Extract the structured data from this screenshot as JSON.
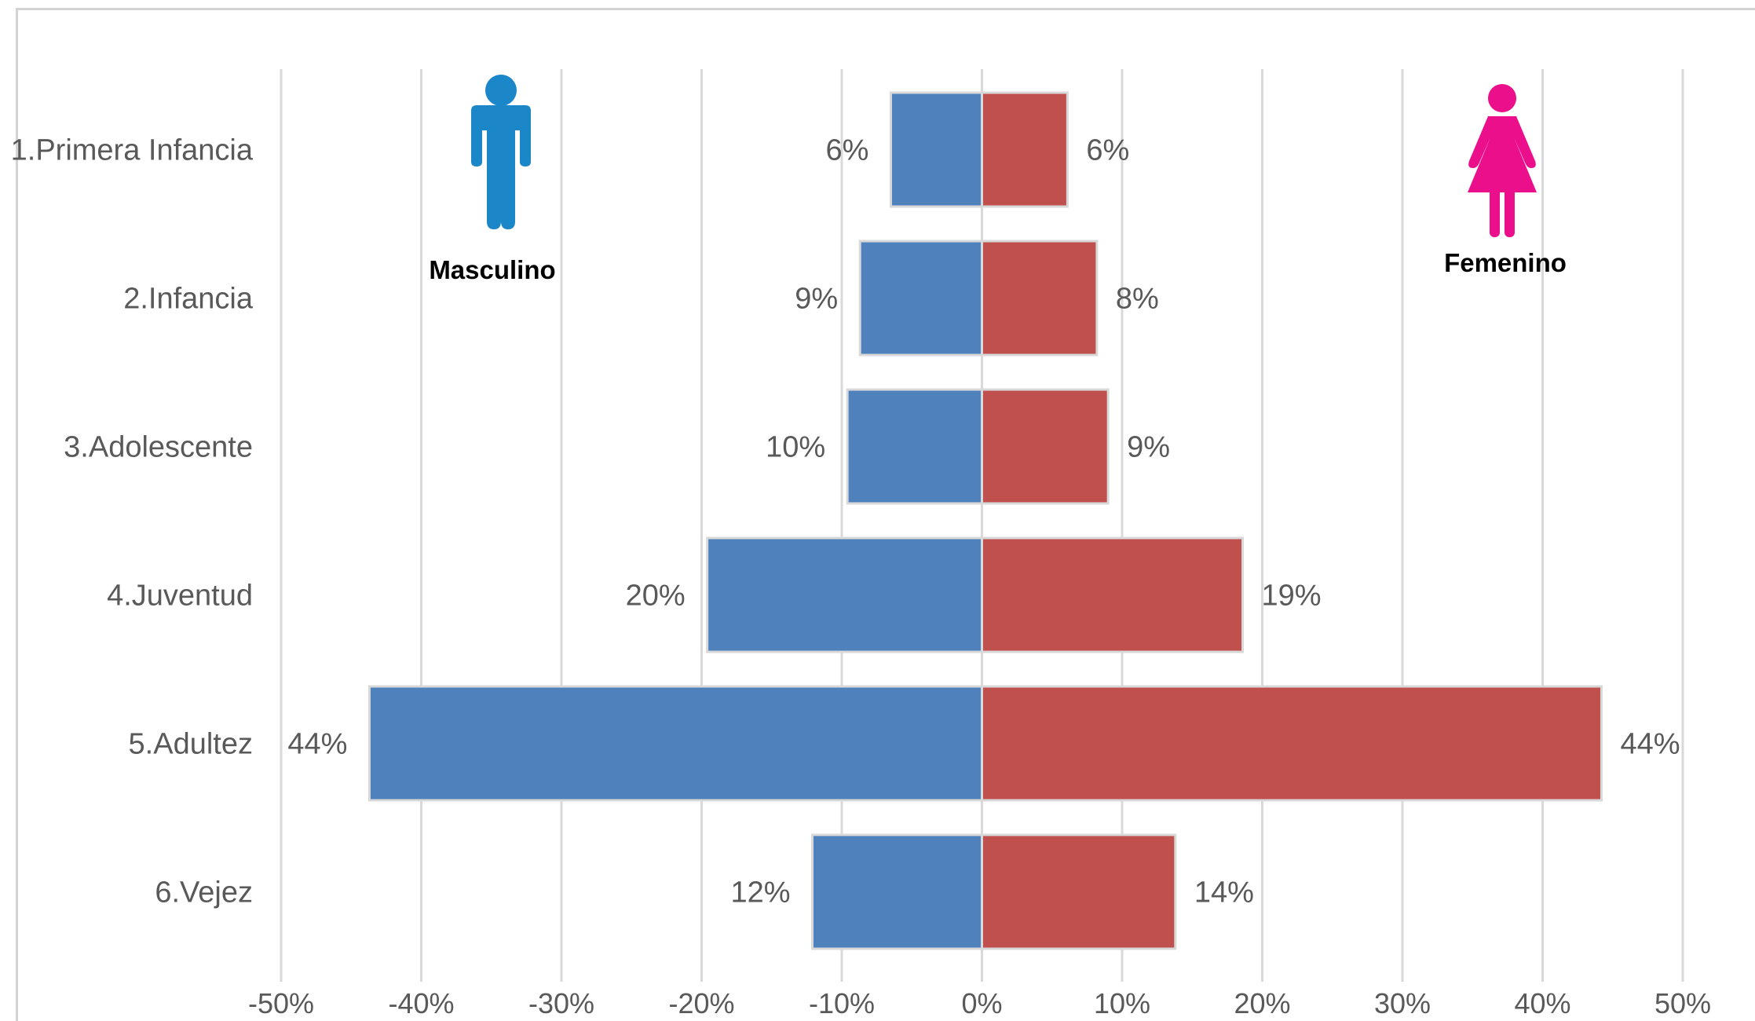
{
  "chart_data": {
    "type": "bar",
    "orientation": "horizontal",
    "stacked": true,
    "categories": [
      "1.Primera Infancia",
      "2.Infancia",
      "3.Adolescente",
      "4.Juventud",
      "5.Adultez",
      "6.Vejez"
    ],
    "series": [
      {
        "name": "Masculino",
        "color": "#4f81bd",
        "values": [
          -6.5,
          -8.7,
          -9.6,
          -19.6,
          -43.7,
          -12.1
        ],
        "labels": [
          "6%",
          "9%",
          "10%",
          "20%",
          "44%",
          "12%"
        ]
      },
      {
        "name": "Femenino",
        "color": "#c0504d",
        "values": [
          6.1,
          8.2,
          9.0,
          18.6,
          44.2,
          13.8
        ],
        "labels": [
          "6%",
          "8%",
          "9%",
          "19%",
          "44%",
          "14%"
        ]
      }
    ],
    "xlim": [
      -50,
      50
    ],
    "xticks": [
      -50,
      -40,
      -30,
      -20,
      -10,
      0,
      10,
      20,
      30,
      40,
      50
    ],
    "xtick_labels": [
      "-50%",
      "-40%",
      "-30%",
      "-20%",
      "-10%",
      "0%",
      "10%",
      "20%",
      "30%",
      "40%",
      "50%"
    ],
    "grid": true,
    "gridline_color": "#d9d9d9",
    "legend": [
      {
        "label": "Masculino",
        "icon": "male-person-icon",
        "color": "#1b87c9",
        "position": "top-left"
      },
      {
        "label": "Femenino",
        "icon": "female-person-icon",
        "color": "#ec0f8c",
        "position": "top-right"
      }
    ]
  }
}
